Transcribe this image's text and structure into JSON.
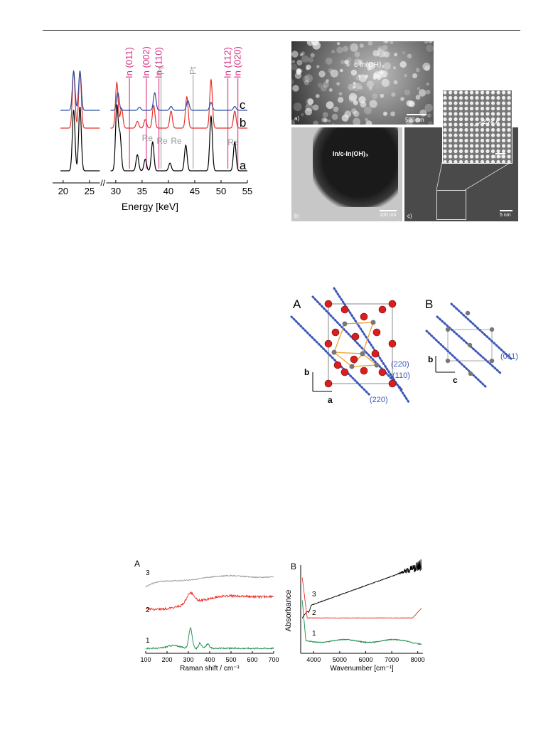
{
  "header_rule": true,
  "xrd": {
    "chart_data": {
      "type": "line",
      "xlabel": "Energy [keV]",
      "xticks": [
        "20",
        "25",
        "30",
        "35",
        "40",
        "45",
        "50",
        "55"
      ],
      "xlim": [
        18,
        55
      ],
      "axis_break": "//",
      "series": [
        {
          "name": "a",
          "color": "#000000",
          "peaks": [
            [
              22,
              0.95
            ],
            [
              23.2,
              1.0
            ],
            [
              30.2,
              1.0
            ],
            [
              30.8,
              0.55
            ],
            [
              34.1,
              0.25
            ],
            [
              35.6,
              0.18
            ],
            [
              37.0,
              0.45
            ],
            [
              40.3,
              0.12
            ],
            [
              43.3,
              0.4
            ],
            [
              48.1,
              0.85
            ],
            [
              52.6,
              0.45
            ]
          ]
        },
        {
          "name": "b",
          "color": "#e8312a",
          "peaks": [
            [
              22,
              1.0
            ],
            [
              23.2,
              1.0
            ],
            [
              30.2,
              0.8
            ],
            [
              31.1,
              0.35
            ],
            [
              34.1,
              0.12
            ],
            [
              35.6,
              0.15
            ],
            [
              37.2,
              0.4
            ],
            [
              40.5,
              0.3
            ],
            [
              43.5,
              0.55
            ],
            [
              48.1,
              0.85
            ],
            [
              52.6,
              0.3
            ]
          ]
        },
        {
          "name": "c",
          "color": "#2b4fa2",
          "peaks": [
            [
              22,
              1.0
            ],
            [
              23.2,
              1.0
            ],
            [
              30.4,
              0.45
            ],
            [
              34.5,
              0.08
            ],
            [
              37.4,
              0.45
            ],
            [
              40.5,
              0.1
            ],
            [
              43.7,
              0.25
            ],
            [
              48.1,
              0.2
            ],
            [
              52.6,
              0.1
            ]
          ]
        }
      ],
      "reflections_magenta": [
        {
          "label": "In (011)",
          "x": 32.6
        },
        {
          "label": "In (002)",
          "x": 35.8
        },
        {
          "label": "In (110)",
          "x": 38.2
        },
        {
          "label": "In (112)",
          "x": 51.3
        },
        {
          "label": "In (020)",
          "x": 53.2
        }
      ],
      "reflections_gray": [
        {
          "label": "Pt",
          "x": 38.6
        },
        {
          "label": "Pt",
          "x": 44.7
        }
      ],
      "re_labels": [
        "Re",
        "Re",
        "Re",
        "Re"
      ]
    }
  },
  "tem": {
    "a_label": "a)",
    "a_text": "c-In(OH)₃",
    "a_scale": "500 nm",
    "b_label": "b)",
    "b_text": "In/c-In(OH)₃",
    "b_scale": "100 nm",
    "c_label": "c)",
    "c_scale": "5 nm",
    "inset_text": "2.74 Å",
    "inset_scale": "1 nm"
  },
  "crystal": {
    "A_label": "A",
    "B_label": "B",
    "A_planes": [
      "(220)",
      "(110)",
      "(220)"
    ],
    "B_plane": "(011)",
    "A_axes": [
      "b",
      "a"
    ],
    "B_axes": [
      "b",
      "c"
    ]
  },
  "spectra": {
    "raman": {
      "chart_data": {
        "type": "line",
        "title": "A",
        "xlabel": "Raman shift / cm⁻¹",
        "xticks": [
          "100",
          "200",
          "300",
          "400",
          "500",
          "600",
          "700"
        ],
        "xlim": [
          100,
          700
        ],
        "series": [
          {
            "name": "3",
            "color": "#999999"
          },
          {
            "name": "2",
            "color": "#e8312a"
          },
          {
            "name": "1",
            "color": "#1a8a4a"
          }
        ]
      }
    },
    "ir": {
      "chart_data": {
        "type": "line",
        "title": "B",
        "xlabel": "Wavenumber [cm⁻¹]",
        "ylabel": "Absorbance",
        "xticks": [
          "4000",
          "5000",
          "6000",
          "7000",
          "8000"
        ],
        "xlim": [
          3500,
          8200
        ],
        "series": [
          {
            "name": "3",
            "color": "#000000"
          },
          {
            "name": "2",
            "color": "#e8312a"
          },
          {
            "name": "1",
            "color": "#1a8a4a"
          }
        ]
      }
    }
  }
}
